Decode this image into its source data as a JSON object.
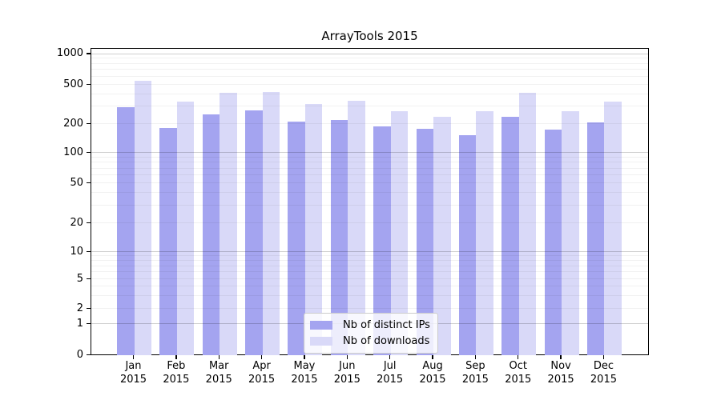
{
  "chart_data": {
    "type": "bar",
    "title": "ArrayTools 2015",
    "categories": [
      {
        "month": "Jan",
        "year": "2015"
      },
      {
        "month": "Feb",
        "year": "2015"
      },
      {
        "month": "Mar",
        "year": "2015"
      },
      {
        "month": "Apr",
        "year": "2015"
      },
      {
        "month": "May",
        "year": "2015"
      },
      {
        "month": "Jun",
        "year": "2015"
      },
      {
        "month": "Jul",
        "year": "2015"
      },
      {
        "month": "Aug",
        "year": "2015"
      },
      {
        "month": "Sep",
        "year": "2015"
      },
      {
        "month": "Oct",
        "year": "2015"
      },
      {
        "month": "Nov",
        "year": "2015"
      },
      {
        "month": "Dec",
        "year": "2015"
      }
    ],
    "series": [
      {
        "name": "Nb of distinct IPs",
        "color": "#a4a4f0",
        "values": [
          300,
          185,
          255,
          280,
          215,
          220,
          190,
          180,
          155,
          240,
          175,
          210
        ]
      },
      {
        "name": "Nb of downloads",
        "color": "#d9d9f8",
        "values": [
          550,
          340,
          420,
          430,
          320,
          350,
          270,
          240,
          270,
          420,
          270,
          340
        ]
      }
    ],
    "xlabel": "",
    "ylabel": "",
    "yscale": "log-with-zero",
    "y_ticks": [
      0,
      1,
      2,
      5,
      10,
      20,
      50,
      100,
      200,
      500,
      1000
    ],
    "ylim": [
      0,
      1000
    ],
    "grid": "horizontal, minor log gridlines, darker at powers of 10",
    "legend_position": "lower center inside plot"
  },
  "colors": {
    "background": "#ffffff",
    "bar_distinct_ips": "#a4a4f0",
    "bar_downloads": "#d9d9f8",
    "spine": "#000000",
    "grid_major": "#cfcfcf",
    "grid_minor": "#ececec",
    "text": "#000000",
    "legend_border": "#cccccc",
    "legend_background": "rgba(255,255,255,0.8)"
  }
}
